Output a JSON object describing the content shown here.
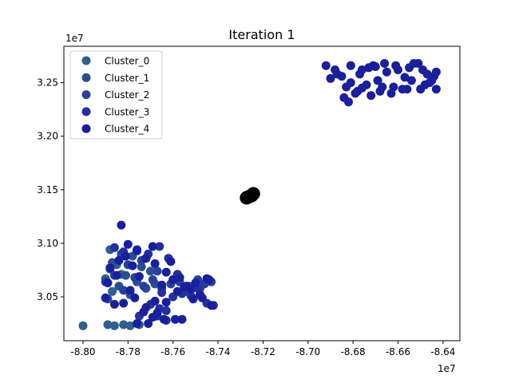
{
  "chart_data": {
    "type": "scatter",
    "title": "Iteration 1",
    "xlabel": "",
    "ylabel": "",
    "x_offset_label": "1e7",
    "y_offset_label": "1e7",
    "xlim": [
      -8.8085,
      -8.6325
    ],
    "ylim": [
      3.009,
      3.284
    ],
    "x_ticks": [
      -8.8,
      -8.78,
      -8.76,
      -8.74,
      -8.72,
      -8.7,
      -8.68,
      -8.66,
      -8.64
    ],
    "x_tick_labels": [
      "-8.80",
      "-8.78",
      "-8.76",
      "-8.74",
      "-8.72",
      "-8.70",
      "-8.68",
      "-8.66",
      "-8.64"
    ],
    "y_ticks": [
      3.05,
      3.1,
      3.15,
      3.2,
      3.25
    ],
    "y_tick_labels": [
      "3.05",
      "3.10",
      "3.15",
      "3.20",
      "3.25"
    ],
    "grid": false,
    "legend_position": "upper-left",
    "series": [
      {
        "name": "Cluster_0",
        "color": "#2f5f8f",
        "x": [
          -8.8,
          -8.789,
          -8.786,
          -8.782,
          -8.779,
          -8.775,
          -8.79,
          -8.788,
          -8.785,
          -8.787,
          -8.783
        ],
        "y": [
          3.023,
          3.024,
          3.023,
          3.024,
          3.023,
          3.024,
          3.067,
          3.094,
          3.08,
          3.055,
          3.071
        ]
      },
      {
        "name": "Cluster_1",
        "color": "#2b4e93",
        "x": [
          -8.789,
          -8.784,
          -8.779,
          -8.776,
          -8.781,
          -8.772,
          -8.768,
          -8.787,
          -8.783,
          -8.778,
          -8.774,
          -8.77
        ],
        "y": [
          3.048,
          3.06,
          3.052,
          3.064,
          3.07,
          3.058,
          3.062,
          3.082,
          3.09,
          3.088,
          3.078,
          3.074
        ]
      },
      {
        "name": "Cluster_2",
        "color": "#26409b",
        "x": [
          -8.79,
          -8.786,
          -8.782,
          -8.777,
          -8.773,
          -8.769,
          -8.765,
          -8.761,
          -8.757,
          -8.753,
          -8.749,
          -8.746,
          -8.743,
          -8.788,
          -8.78,
          -8.774,
          -8.767,
          -8.76,
          -8.754,
          -8.748
        ],
        "y": [
          3.064,
          3.07,
          3.056,
          3.068,
          3.06,
          3.066,
          3.058,
          3.062,
          3.064,
          3.06,
          3.066,
          3.062,
          3.064,
          3.076,
          3.08,
          3.084,
          3.074,
          3.066,
          3.055,
          3.058
        ]
      },
      {
        "name": "Cluster_3",
        "color": "#2230a0",
        "x": [
          -8.786,
          -8.782,
          -8.776,
          -8.771,
          -8.766,
          -8.762,
          -8.758,
          -8.765,
          -8.76,
          -8.756,
          -8.752,
          -8.749,
          -8.745,
          -8.742,
          -8.77,
          -8.766,
          -8.763,
          -8.767,
          -8.775,
          -8.763
        ],
        "y": [
          3.096,
          3.092,
          3.094,
          3.09,
          3.097,
          3.086,
          3.071,
          3.054,
          3.05,
          3.053,
          3.051,
          3.058,
          3.044,
          3.042,
          3.043,
          3.039,
          3.037,
          3.032,
          3.032,
          3.028
        ]
      },
      {
        "name": "Cluster_4",
        "color": "#1a1f9c",
        "x": [
          -8.783,
          -8.78,
          -8.784,
          -8.778,
          -8.772,
          -8.768,
          -8.775,
          -8.788,
          -8.79,
          -8.765,
          -8.763,
          -8.76,
          -8.757,
          -8.754,
          -8.752,
          -8.75,
          -8.744,
          -8.748,
          -8.763,
          -8.782,
          -8.786,
          -8.772,
          -8.777,
          -8.768,
          -8.773,
          -8.779,
          -8.789,
          -8.785,
          -8.781,
          -8.776,
          -8.769,
          -8.761,
          -8.758,
          -8.755,
          -8.751,
          -8.747,
          -8.743,
          -8.745,
          -8.756,
          -8.764,
          -8.776,
          -8.771,
          -8.767,
          -8.769,
          -8.759,
          -8.692,
          -8.688,
          -8.685,
          -8.681,
          -8.677,
          -8.673,
          -8.669,
          -8.665,
          -8.661,
          -8.657,
          -8.653,
          -8.649,
          -8.646,
          -8.643,
          -8.69,
          -8.683,
          -8.679,
          -8.674,
          -8.668,
          -8.662,
          -8.656,
          -8.65,
          -8.645,
          -8.687,
          -8.681,
          -8.676,
          -8.671,
          -8.666,
          -8.66,
          -8.655,
          -8.651,
          -8.647,
          -8.644,
          -8.684,
          -8.678,
          -8.672,
          -8.667,
          -8.663,
          -8.658,
          -8.654,
          -8.648,
          -8.643,
          -8.682,
          -8.676,
          -8.67
        ],
        "y": [
          3.117,
          3.099,
          3.084,
          3.079,
          3.086,
          3.081,
          3.069,
          3.077,
          3.049,
          3.061,
          3.073,
          3.066,
          3.068,
          3.06,
          3.057,
          3.063,
          3.066,
          3.052,
          3.045,
          3.044,
          3.043,
          3.04,
          3.049,
          3.046,
          3.036,
          3.056,
          3.063,
          3.07,
          3.088,
          3.093,
          3.097,
          3.083,
          3.055,
          3.059,
          3.048,
          3.049,
          3.042,
          3.067,
          3.029,
          3.029,
          3.025,
          3.025,
          3.035,
          3.031,
          3.029,
          3.266,
          3.262,
          3.256,
          3.25,
          3.258,
          3.264,
          3.252,
          3.26,
          3.266,
          3.255,
          3.268,
          3.262,
          3.25,
          3.244,
          3.254,
          3.246,
          3.24,
          3.248,
          3.242,
          3.246,
          3.244,
          3.244,
          3.252,
          3.258,
          3.266,
          3.262,
          3.266,
          3.268,
          3.262,
          3.264,
          3.268,
          3.258,
          3.256,
          3.236,
          3.242,
          3.238,
          3.246,
          3.24,
          3.244,
          3.252,
          3.248,
          3.26,
          3.232,
          3.245,
          3.265
        ]
      }
    ],
    "centroids": {
      "color": "#000000",
      "x": [
        -8.7273,
        -8.7262,
        -8.7251,
        -8.7243
      ],
      "y": [
        3.1425,
        3.1435,
        3.1445,
        3.1462
      ]
    }
  }
}
